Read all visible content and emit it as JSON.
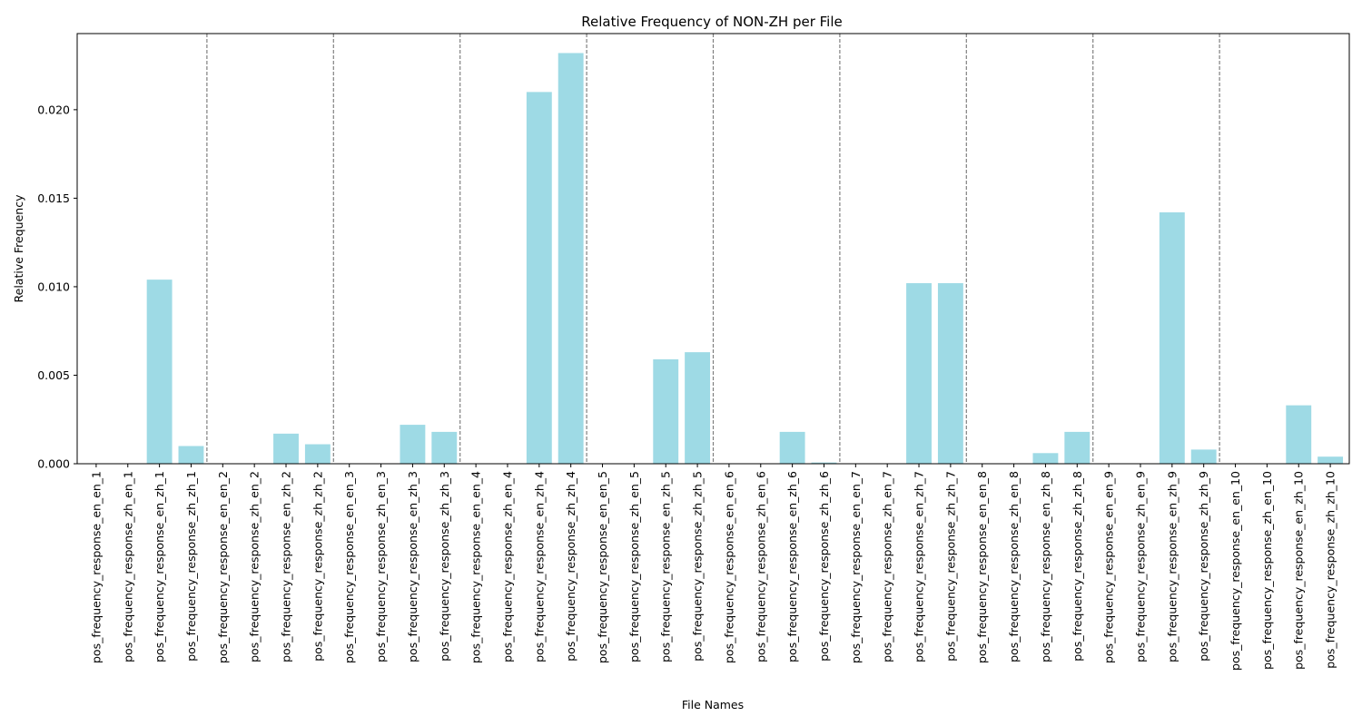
{
  "chart_data": {
    "type": "bar",
    "title": "Relative Frequency of NON-ZH per File",
    "xlabel": "File Names",
    "ylabel": "Relative Frequency",
    "ylim": [
      0,
      0.0243
    ],
    "yticks": [
      0.0,
      0.005,
      0.01,
      0.015,
      0.02
    ],
    "ytick_labels": [
      "0.000",
      "0.005",
      "0.010",
      "0.015",
      "0.020"
    ],
    "grid": false,
    "bar_color": "#9edae5",
    "separator_color": "#808080",
    "group_size": 4,
    "categories": [
      "pos_frequency_response_en_en_1",
      "pos_frequency_response_zh_en_1",
      "pos_frequency_response_en_zh_1",
      "pos_frequency_response_zh_zh_1",
      "pos_frequency_response_en_en_2",
      "pos_frequency_response_zh_en_2",
      "pos_frequency_response_en_zh_2",
      "pos_frequency_response_zh_zh_2",
      "pos_frequency_response_en_en_3",
      "pos_frequency_response_zh_en_3",
      "pos_frequency_response_en_zh_3",
      "pos_frequency_response_zh_zh_3",
      "pos_frequency_response_en_en_4",
      "pos_frequency_response_zh_en_4",
      "pos_frequency_response_en_zh_4",
      "pos_frequency_response_zh_zh_4",
      "pos_frequency_response_en_en_5",
      "pos_frequency_response_zh_en_5",
      "pos_frequency_response_en_zh_5",
      "pos_frequency_response_zh_zh_5",
      "pos_frequency_response_en_en_6",
      "pos_frequency_response_zh_en_6",
      "pos_frequency_response_en_zh_6",
      "pos_frequency_response_zh_zh_6",
      "pos_frequency_response_en_en_7",
      "pos_frequency_response_zh_en_7",
      "pos_frequency_response_en_zh_7",
      "pos_frequency_response_zh_zh_7",
      "pos_frequency_response_en_en_8",
      "pos_frequency_response_zh_en_8",
      "pos_frequency_response_en_zh_8",
      "pos_frequency_response_zh_zh_8",
      "pos_frequency_response_en_en_9",
      "pos_frequency_response_zh_en_9",
      "pos_frequency_response_en_zh_9",
      "pos_frequency_response_zh_zh_9",
      "pos_frequency_response_en_en_10",
      "pos_frequency_response_zh_en_10",
      "pos_frequency_response_en_zh_10",
      "pos_frequency_response_zh_zh_10"
    ],
    "values": [
      0.0,
      0.0,
      0.0104,
      0.001,
      0.0,
      0.0,
      0.0017,
      0.0011,
      0.0,
      0.0,
      0.0022,
      0.0018,
      0.0,
      0.0,
      0.021,
      0.0232,
      0.0,
      0.0,
      0.0059,
      0.0063,
      0.0,
      0.0,
      0.0018,
      7e-05,
      0.0,
      0.0,
      0.0102,
      0.0102,
      0.0,
      0.0,
      0.0006,
      0.0018,
      0.0,
      0.0,
      0.0142,
      0.0008,
      0.0,
      0.0,
      0.0033,
      0.0004
    ]
  }
}
